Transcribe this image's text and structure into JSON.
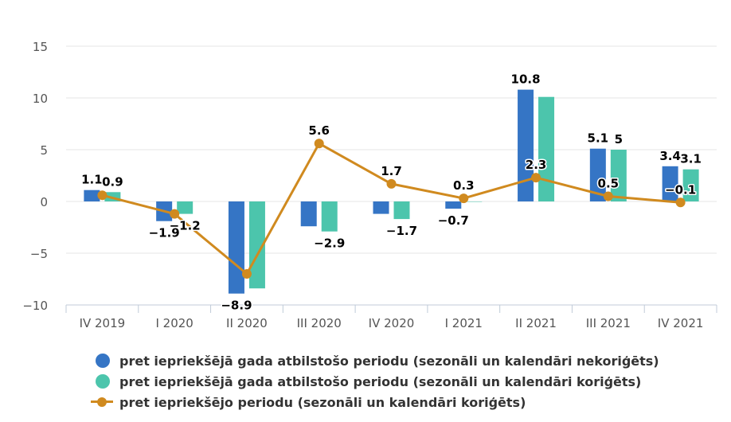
{
  "chart_data": {
    "type": "bar",
    "categories": [
      "IV 2019",
      "I 2020",
      "II 2020",
      "III 2020",
      "IV 2020",
      "I 2021",
      "II 2021",
      "III 2021",
      "IV 2021"
    ],
    "ylim": [
      -10,
      15
    ],
    "yticks": [
      -10,
      -5,
      0,
      5,
      10,
      15
    ],
    "ytick_labels": [
      "−10",
      "−5",
      "0",
      "5",
      "10",
      "15"
    ],
    "series": [
      {
        "name": "pret iepriekšējā gada atbilstošo periodu (sezonāli un kalendāri nekoriģēts)",
        "kind": "bar",
        "color": "#3575c5",
        "values": [
          1.1,
          -1.9,
          -8.9,
          -2.4,
          -1.2,
          -0.7,
          10.8,
          5.1,
          3.4
        ],
        "labels": [
          "1.1",
          "−1.9",
          "−8.9",
          "",
          "",
          "−0.7",
          "10.8",
          "5.1",
          "3.4"
        ]
      },
      {
        "name": "pret iepriekšējā gada atbilstošo periodu (sezonāli un kalendāri koriģēts)",
        "kind": "bar",
        "color": "#4cc5ac",
        "values": [
          0.9,
          -1.2,
          -8.4,
          -2.9,
          -1.7,
          0,
          10.1,
          5,
          3.1
        ],
        "labels": [
          "0.9",
          "−1.2",
          "",
          "−2.9",
          "−1.7",
          "",
          "",
          "5",
          "3.1"
        ]
      },
      {
        "name": "pret iepriekšējo periodu (sezonāli un kalendāri koriģēts)",
        "kind": "line",
        "color": "#d08a1f",
        "values": [
          0.6,
          -1.2,
          -7.0,
          5.6,
          1.7,
          0.3,
          2.3,
          0.5,
          -0.1
        ],
        "labels": [
          "",
          "",
          "",
          "5.6",
          "1.7",
          "0.3",
          "2.3",
          "0.5",
          "−0.1"
        ]
      }
    ],
    "legend_position": "bottom"
  }
}
